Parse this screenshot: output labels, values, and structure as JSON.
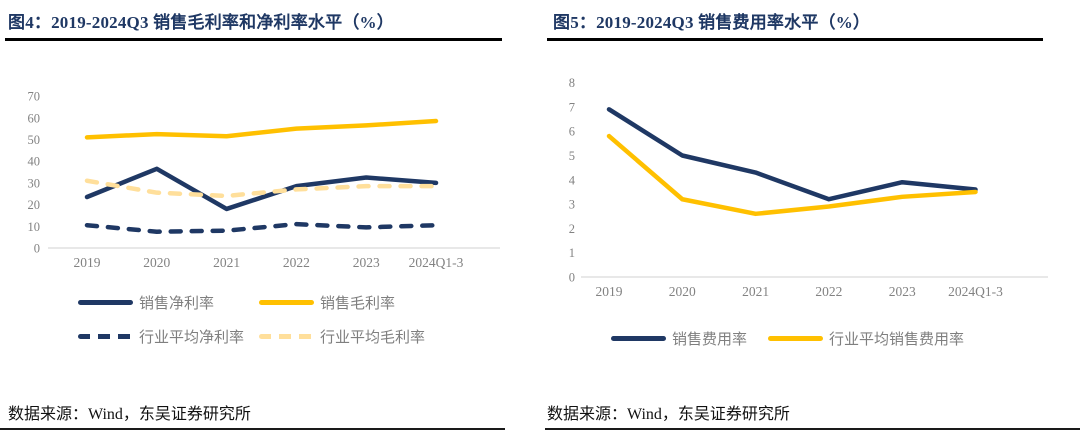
{
  "figures": [
    {
      "title": "图4：2019-2024Q3 销售毛利率和净利率水平（%）",
      "source": "数据来源：Wind，东吴证券研究所"
    },
    {
      "title": "图5：2019-2024Q3 销售费用率水平（%）",
      "source": "数据来源：Wind，东吴证券研究所"
    }
  ],
  "colors": {
    "navy": "#1f3864",
    "yellow": "#ffc000",
    "light_yellow": "#ffdf9b",
    "axis_text": "#828282",
    "legend_text": "#7f7f7f",
    "axis_line": "#d9d9d9",
    "title_text": "#1f3864"
  },
  "chart_data": [
    {
      "type": "line",
      "title": "图4：2019-2024Q3 销售毛利率和净利率水平（%）",
      "categories": [
        "2019",
        "2020",
        "2021",
        "2022",
        "2023",
        "2024Q1-3"
      ],
      "xlabel": "",
      "ylabel": "",
      "ylim": [
        0,
        70
      ],
      "ytick_step": 10,
      "grid": false,
      "legend_position": "bottom",
      "series": [
        {
          "name": "销售净利率",
          "color": "#1f3864",
          "dash": "solid",
          "values": [
            23.5,
            36.5,
            18,
            28.5,
            32.5,
            30
          ]
        },
        {
          "name": "销售毛利率",
          "color": "#ffc000",
          "dash": "solid",
          "values": [
            51,
            52.5,
            51.5,
            55,
            56.5,
            58.5
          ]
        },
        {
          "name": "行业平均净利率",
          "color": "#1f3864",
          "dash": "dashed",
          "values": [
            10.5,
            7.5,
            8,
            11,
            9.5,
            10.5
          ]
        },
        {
          "name": "行业平均毛利率",
          "color": "#ffdf9b",
          "dash": "dashed",
          "values": [
            31,
            25.5,
            24,
            27,
            28.5,
            28.5
          ]
        }
      ]
    },
    {
      "type": "line",
      "title": "图5：2019-2024Q3 销售费用率水平（%）",
      "categories": [
        "2019",
        "2020",
        "2021",
        "2022",
        "2023",
        "2024Q1-3"
      ],
      "xlabel": "",
      "ylabel": "",
      "ylim": [
        0,
        8
      ],
      "ytick_step": 1,
      "grid": false,
      "legend_position": "bottom",
      "series": [
        {
          "name": "销售费用率",
          "color": "#1f3864",
          "dash": "solid",
          "values": [
            6.9,
            5.0,
            4.3,
            3.2,
            3.9,
            3.6
          ]
        },
        {
          "name": "行业平均销售费用率",
          "color": "#ffc000",
          "dash": "solid",
          "values": [
            5.8,
            3.2,
            2.6,
            2.9,
            3.3,
            3.5
          ]
        }
      ]
    }
  ]
}
